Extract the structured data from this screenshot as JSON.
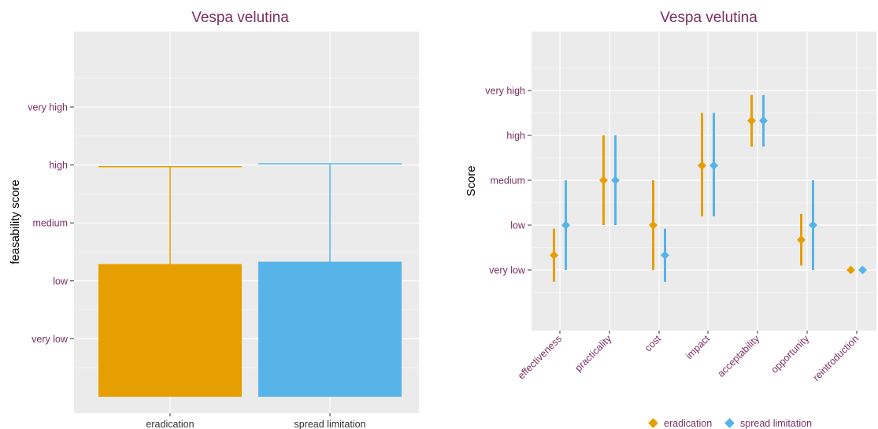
{
  "colors": {
    "eradication": "#e69f00",
    "spread_limitation": "#56b4e9",
    "panel_bg": "#ebebeb",
    "grid": "#ffffff",
    "title": "#7a2f63"
  },
  "chart_data": [
    {
      "type": "bar",
      "title": "Vespa velutina",
      "xlabel": "",
      "ylabel": "feasability score",
      "categories": [
        "eradication",
        "spread limitation"
      ],
      "values": [
        2.29,
        2.33
      ],
      "error_upper": [
        3.97,
        4.02
      ],
      "y_ticks": [
        "very low",
        "low",
        "medium",
        "high",
        "very high"
      ],
      "y_tick_values": [
        1,
        2,
        3,
        4,
        5
      ],
      "ylim": [
        0,
        6
      ],
      "grid": true
    },
    {
      "type": "scatter",
      "title": "Vespa velutina",
      "xlabel": "",
      "ylabel": "Score",
      "categories": [
        "effectiveness",
        "practicality",
        "cost",
        "impact",
        "acceptability",
        "opportunity",
        "reintroduction"
      ],
      "y_ticks": [
        "very low",
        "low",
        "medium",
        "high",
        "very high"
      ],
      "y_tick_values": [
        1,
        2,
        3,
        4,
        5
      ],
      "ylim": [
        0,
        6
      ],
      "grid": true,
      "legend_position": "bottom",
      "series": [
        {
          "name": "eradication",
          "values": [
            1.33,
            3.0,
            2.0,
            3.33,
            4.33,
            1.67,
            1.0
          ],
          "lower": [
            0.74,
            2.0,
            1.0,
            2.2,
            3.75,
            1.1,
            1.0
          ],
          "upper": [
            1.92,
            4.0,
            3.0,
            4.5,
            4.9,
            2.25,
            1.0
          ]
        },
        {
          "name": "spread limitation",
          "values": [
            2.0,
            3.0,
            1.33,
            3.33,
            4.33,
            2.0,
            1.0
          ],
          "lower": [
            1.0,
            2.0,
            0.74,
            2.2,
            3.75,
            1.0,
            1.0
          ],
          "upper": [
            3.0,
            4.0,
            1.92,
            4.5,
            4.9,
            3.0,
            1.0
          ]
        }
      ]
    }
  ]
}
